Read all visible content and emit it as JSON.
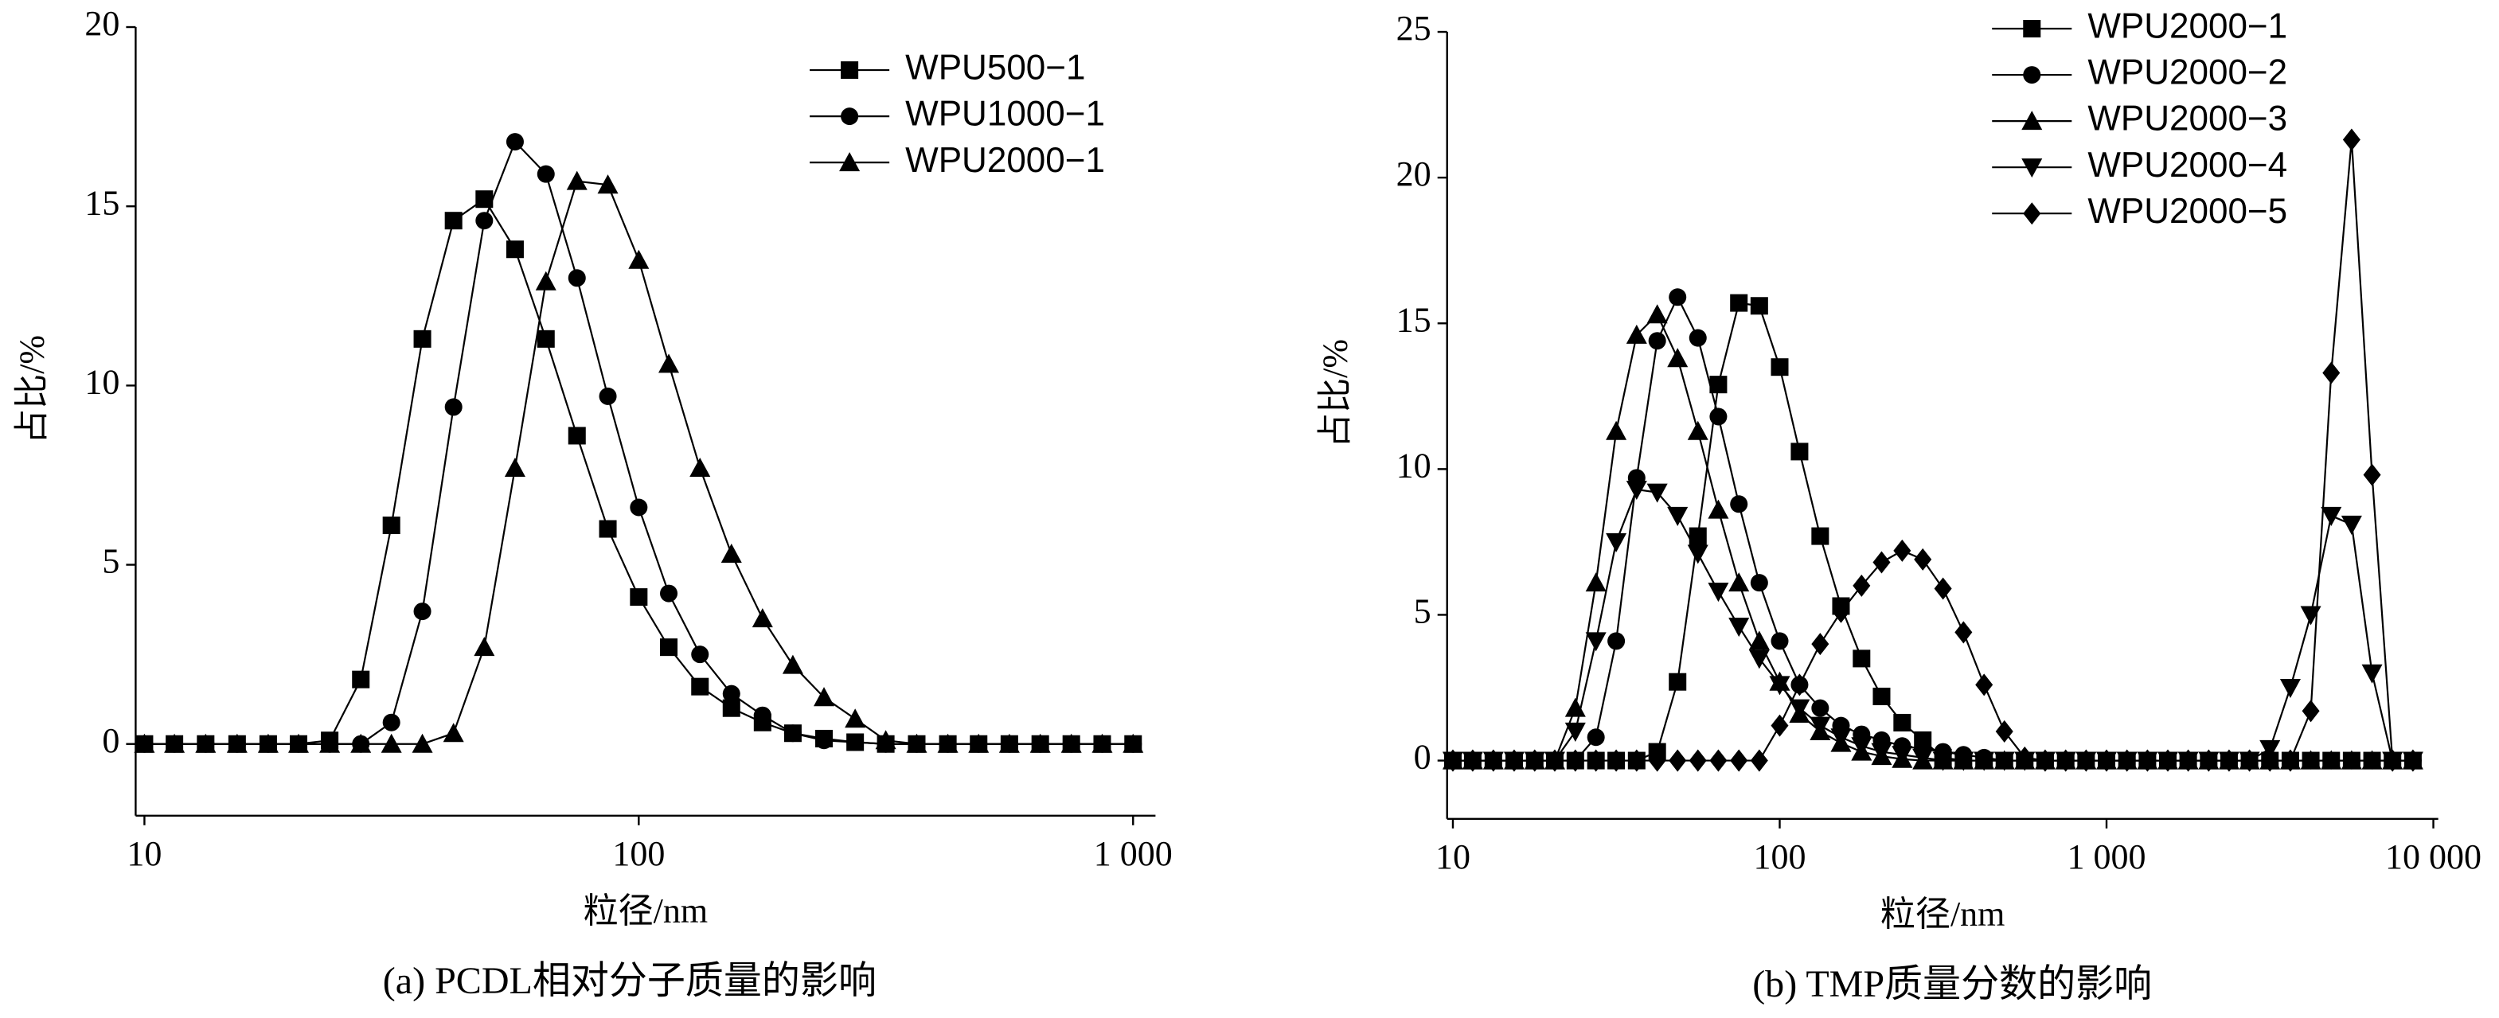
{
  "chart_data": [
    {
      "type": "line",
      "caption": "(a) PCDL相对分子质量的影响",
      "x_label": "粒径/nm",
      "y_label": "占比/%",
      "log_x": true,
      "legend": "upper right",
      "x": [
        10,
        11.5,
        13.3,
        15.4,
        17.8,
        20.5,
        23.7,
        27.4,
        31.6,
        36.5,
        42.2,
        48.7,
        56.2,
        64.9,
        75,
        86.6,
        100,
        115,
        133,
        154,
        178,
        205,
        237,
        274,
        316,
        365,
        422,
        487,
        562,
        649,
        750,
        866,
        1000
      ],
      "xlim": [
        9.6,
        1110
      ],
      "xticks": [
        10,
        100,
        {
          "value": 1000,
          "label": "1 000"
        }
      ],
      "ylim": [
        -2,
        20
      ],
      "yticks": [
        0,
        5,
        10,
        15,
        20
      ],
      "series": [
        {
          "name": "WPU500−1",
          "color": "#000000",
          "marker": "square",
          "values": [
            0,
            0,
            0,
            0,
            0,
            0,
            0.1,
            1.8,
            6.1,
            11.3,
            14.6,
            15.2,
            13.8,
            11.3,
            8.6,
            6.0,
            4.1,
            2.7,
            1.6,
            1.0,
            0.6,
            0.3,
            0.15,
            0.05,
            0,
            0,
            0,
            0,
            0,
            0,
            0,
            0,
            0
          ]
        },
        {
          "name": "WPU1000−1",
          "color": "#000000",
          "marker": "circle",
          "values": [
            0,
            0,
            0,
            0,
            0,
            0,
            0,
            0,
            0.6,
            3.7,
            9.4,
            14.6,
            16.8,
            15.9,
            13.0,
            9.7,
            6.6,
            4.2,
            2.5,
            1.4,
            0.8,
            0.3,
            0.1,
            0.05,
            0,
            0,
            0,
            0,
            0,
            0,
            0,
            0,
            0
          ]
        },
        {
          "name": "WPU2000−1",
          "color": "#000000",
          "marker": "triangle",
          "values": [
            0,
            0,
            0,
            0,
            0,
            0,
            0,
            0,
            0,
            0,
            0.3,
            2.7,
            7.7,
            12.9,
            15.7,
            15.6,
            13.5,
            10.6,
            7.7,
            5.3,
            3.5,
            2.2,
            1.3,
            0.7,
            0.1,
            0,
            0,
            0,
            0,
            0,
            0,
            0,
            0
          ]
        }
      ]
    },
    {
      "type": "line",
      "caption": "(b) TMP质量分数的影响",
      "x_label": "粒径/nm",
      "y_label": "占比/%",
      "log_x": true,
      "legend": "upper left",
      "x": [
        10,
        11.5,
        13.3,
        15.4,
        17.8,
        20.5,
        23.7,
        27.4,
        31.6,
        36.5,
        42.2,
        48.7,
        56.2,
        64.9,
        75,
        86.6,
        100,
        115,
        133,
        154,
        178,
        205,
        237,
        274,
        316,
        365,
        422,
        487,
        562,
        649,
        750,
        866,
        1000,
        1155,
        1334,
        1540,
        1778,
        2054,
        2371,
        2738,
        3162,
        3652,
        4217,
        4870,
        5623,
        6494,
        7499,
        8660
      ],
      "xlim": [
        9.6,
        10350
      ],
      "xticks": [
        10,
        100,
        {
          "value": 1000,
          "label": "1 000"
        },
        {
          "value": 10000,
          "label": "10 000"
        }
      ],
      "ylim": [
        -2,
        25
      ],
      "yticks": [
        0,
        5,
        10,
        15,
        20,
        25
      ],
      "series": [
        {
          "name": "WPU2000−1",
          "color": "#000000",
          "marker": "square",
          "values": [
            0,
            0,
            0,
            0,
            0,
            0,
            0,
            0,
            0,
            0,
            0.3,
            2.7,
            7.7,
            12.9,
            15.7,
            15.6,
            13.5,
            10.6,
            7.7,
            5.3,
            3.5,
            2.2,
            1.3,
            0.7,
            0.1,
            0,
            0,
            0,
            0,
            0,
            0,
            0,
            0,
            0,
            0,
            0,
            0,
            0,
            0,
            0,
            0,
            0,
            0,
            0,
            0,
            0,
            0,
            0
          ]
        },
        {
          "name": "WPU2000−2",
          "color": "#000000",
          "marker": "circle",
          "values": [
            0,
            0,
            0,
            0,
            0,
            0,
            0,
            0.8,
            4.1,
            9.7,
            14.4,
            15.9,
            14.5,
            11.8,
            8.8,
            6.1,
            4.1,
            2.6,
            1.8,
            1.2,
            0.9,
            0.7,
            0.5,
            0.4,
            0.3,
            0.2,
            0.1,
            0,
            0,
            0,
            0,
            0,
            0,
            0,
            0,
            0,
            0,
            0,
            0,
            0,
            0,
            0,
            0,
            0,
            0,
            0,
            0,
            0
          ]
        },
        {
          "name": "WPU2000−3",
          "color": "#000000",
          "marker": "triangle",
          "values": [
            0,
            0,
            0,
            0,
            0,
            0,
            1.8,
            6.1,
            11.3,
            14.6,
            15.3,
            13.8,
            11.3,
            8.6,
            6.1,
            4.1,
            2.7,
            1.6,
            1.0,
            0.6,
            0.3,
            0.15,
            0.05,
            0,
            0,
            0,
            0,
            0,
            0,
            0,
            0,
            0,
            0,
            0,
            0,
            0,
            0,
            0,
            0,
            0,
            0,
            0,
            0,
            0,
            0,
            0,
            0,
            0
          ]
        },
        {
          "name": "WPU2000−4",
          "color": "#000000",
          "marker": "triangle-down",
          "values": [
            0,
            0,
            0,
            0,
            0,
            0,
            1.0,
            4.1,
            7.5,
            9.3,
            9.2,
            8.4,
            7.1,
            5.8,
            4.6,
            3.5,
            2.6,
            1.8,
            1.2,
            0.8,
            0.5,
            0.3,
            0.2,
            0.1,
            0,
            0,
            0,
            0,
            0,
            0,
            0,
            0,
            0,
            0,
            0,
            0,
            0,
            0,
            0,
            0,
            0.4,
            2.5,
            5.0,
            8.4,
            8.1,
            3.0,
            0,
            0
          ]
        },
        {
          "name": "WPU2000−5",
          "color": "#000000",
          "marker": "diamond",
          "values": [
            0,
            0,
            0,
            0,
            0,
            0,
            0,
            0,
            0,
            0,
            0,
            0,
            0,
            0,
            0,
            0,
            1.2,
            2.6,
            4.0,
            5.1,
            6.0,
            6.8,
            7.2,
            6.9,
            5.9,
            4.4,
            2.6,
            1.0,
            0.1,
            0,
            0,
            0,
            0,
            0,
            0,
            0,
            0,
            0,
            0,
            0,
            0,
            0,
            1.7,
            13.3,
            21.3,
            9.8,
            0,
            0
          ]
        }
      ]
    }
  ]
}
